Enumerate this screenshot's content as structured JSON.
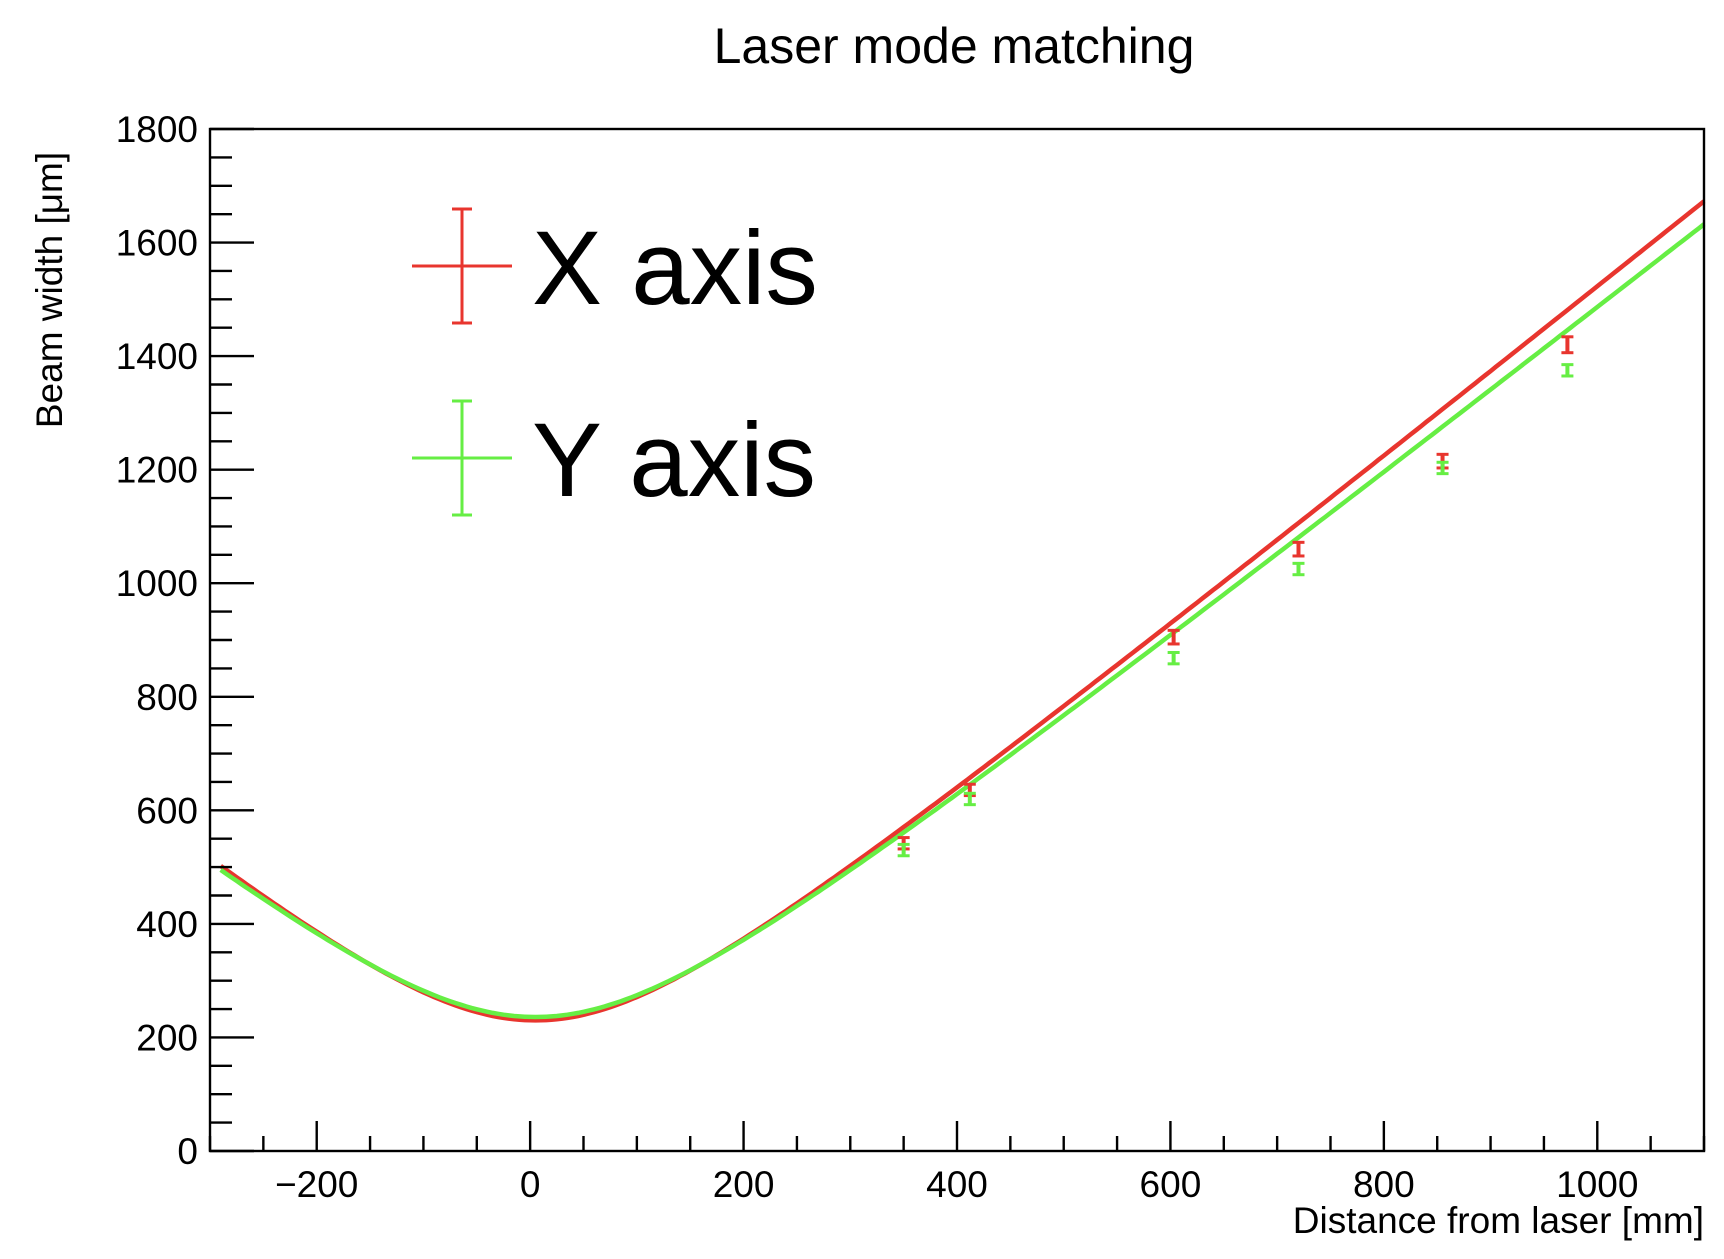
{
  "chart_data": {
    "type": "line",
    "title": "Laser mode matching",
    "xlabel": "Distance from laser [mm]",
    "ylabel": "Beam width [μm]",
    "xlim": [
      -300,
      1100
    ],
    "ylim": [
      0,
      1800
    ],
    "x_ticks": [
      -200,
      0,
      200,
      400,
      600,
      800,
      1000
    ],
    "x_tick_labels": [
      "−200",
      "0",
      "200",
      "400",
      "600",
      "800",
      "1000"
    ],
    "y_ticks": [
      0,
      200,
      400,
      600,
      800,
      1000,
      1200,
      1400,
      1600,
      1800
    ],
    "y_tick_labels": [
      "0",
      "200",
      "400",
      "600",
      "800",
      "1000",
      "1200",
      "1400",
      "1600",
      "1800"
    ],
    "grid": false,
    "legend_position": "top-left",
    "series": [
      {
        "name": "X axis",
        "color": "#e8352e",
        "points": {
          "x": [
            350,
            412,
            603,
            720,
            855,
            972
          ],
          "y": [
            542,
            636,
            905,
            1060,
            1215,
            1420
          ],
          "yerr": [
            10,
            10,
            12,
            12,
            12,
            14
          ]
        },
        "fit": {
          "w0": 230,
          "z0": 5,
          "zr": 152
        }
      },
      {
        "name": "Y axis",
        "color": "#66ee44",
        "points": {
          "x": [
            350,
            412,
            603,
            720,
            855,
            972
          ],
          "y": [
            530,
            620,
            868,
            1025,
            1203,
            1375
          ],
          "yerr": [
            10,
            10,
            10,
            10,
            10,
            10
          ]
        },
        "fit": {
          "w0": 236,
          "z0": 5,
          "zr": 160
        }
      }
    ]
  }
}
